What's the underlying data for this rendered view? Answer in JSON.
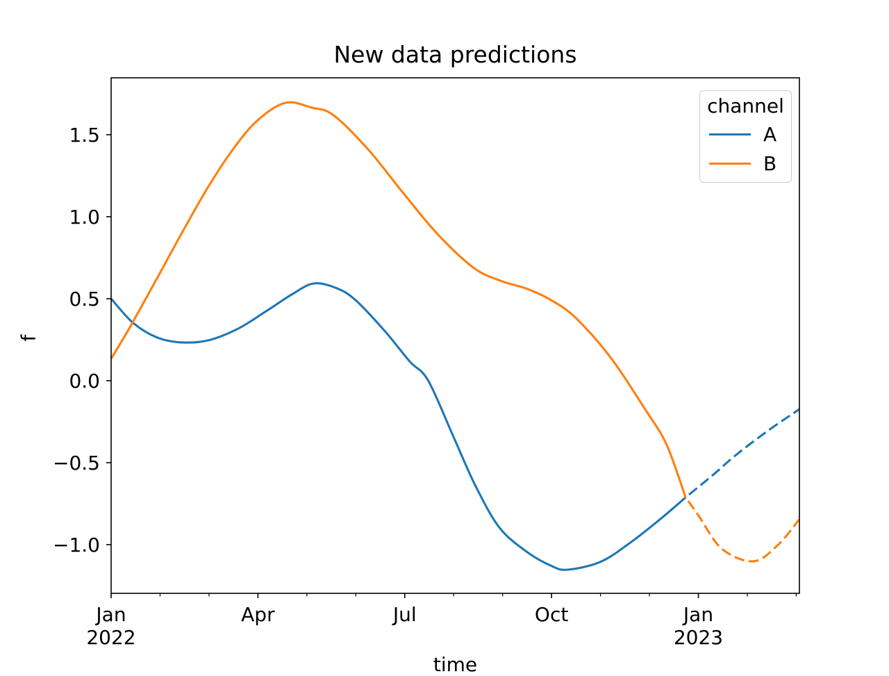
{
  "figure": {
    "title": "New data predictions"
  },
  "axes": {
    "xlabel": "time",
    "ylabel": "f"
  },
  "legend": {
    "title": "channel",
    "position": "upper right",
    "entries": [
      {
        "label": "A",
        "color": "#1f77b4"
      },
      {
        "label": "B",
        "color": "#ff7f0e"
      }
    ]
  },
  "chart_data": {
    "type": "line",
    "title": "New data predictions",
    "xlabel": "time",
    "ylabel": "f",
    "x_unit": "months since 2022-01-01",
    "x_range_months": [
      0,
      14.065
    ],
    "ylim": [
      -1.297,
      1.847
    ],
    "grid": false,
    "legend_position": "upper right",
    "y_ticks": [
      {
        "value": 1.5,
        "label": "1.5"
      },
      {
        "value": 1.0,
        "label": "1.0"
      },
      {
        "value": 0.5,
        "label": "0.5"
      },
      {
        "value": 0.0,
        "label": "0.0"
      },
      {
        "value": -0.5,
        "label": "−0.5"
      },
      {
        "value": -1.0,
        "label": "−1.0"
      }
    ],
    "x_major_ticks": [
      {
        "months": 0,
        "lines": [
          "Jan",
          "2022"
        ]
      },
      {
        "months": 3,
        "lines": [
          "Apr"
        ]
      },
      {
        "months": 6,
        "lines": [
          "Jul"
        ]
      },
      {
        "months": 9,
        "lines": [
          "Oct"
        ]
      },
      {
        "months": 12,
        "lines": [
          "Jan",
          "2023"
        ]
      }
    ],
    "x_minor_ticks_months": [
      1,
      2,
      4,
      5,
      7,
      8,
      10,
      11,
      13,
      14
    ],
    "forecast_start_months": 11.74,
    "line_style": {
      "observed": "solid",
      "forecast": "dashed",
      "width": 3
    },
    "series": [
      {
        "name": "A",
        "color": "#1f77b4",
        "observed": [
          [
            0.0,
            0.5
          ],
          [
            0.45,
            0.352
          ],
          [
            0.95,
            0.262
          ],
          [
            1.45,
            0.233
          ],
          [
            2.0,
            0.247
          ],
          [
            2.6,
            0.318
          ],
          [
            3.2,
            0.43
          ],
          [
            3.7,
            0.527
          ],
          [
            4.14,
            0.593
          ],
          [
            4.6,
            0.565
          ],
          [
            5.0,
            0.49
          ],
          [
            5.6,
            0.3
          ],
          [
            6.1,
            0.118
          ],
          [
            6.48,
            0.0
          ],
          [
            7.0,
            -0.345
          ],
          [
            7.45,
            -0.644
          ],
          [
            7.94,
            -0.898
          ],
          [
            8.51,
            -1.047
          ],
          [
            9.0,
            -1.13
          ],
          [
            9.33,
            -1.153
          ],
          [
            10.0,
            -1.105
          ],
          [
            10.6,
            -0.99
          ],
          [
            11.2,
            -0.85
          ],
          [
            11.74,
            -0.712
          ]
        ],
        "forecast": [
          [
            11.74,
            -0.712
          ],
          [
            12.3,
            -0.575
          ],
          [
            12.77,
            -0.453
          ],
          [
            13.4,
            -0.31
          ],
          [
            14.06,
            -0.175
          ]
        ]
      },
      {
        "name": "B",
        "color": "#ff7f0e",
        "observed": [
          [
            0.0,
            0.133
          ],
          [
            0.43,
            0.35
          ],
          [
            1.0,
            0.658
          ],
          [
            1.5,
            0.93
          ],
          [
            2.0,
            1.19
          ],
          [
            2.5,
            1.415
          ],
          [
            3.0,
            1.59
          ],
          [
            3.57,
            1.695
          ],
          [
            4.1,
            1.665
          ],
          [
            4.54,
            1.62
          ],
          [
            5.25,
            1.411
          ],
          [
            5.96,
            1.148
          ],
          [
            6.67,
            0.894
          ],
          [
            7.4,
            0.69
          ],
          [
            7.95,
            0.61
          ],
          [
            8.5,
            0.56
          ],
          [
            9.0,
            0.49
          ],
          [
            9.5,
            0.381
          ],
          [
            10.21,
            0.14
          ],
          [
            10.92,
            -0.178
          ],
          [
            11.35,
            -0.39
          ],
          [
            11.74,
            -0.712
          ]
        ],
        "forecast": [
          [
            11.74,
            -0.712
          ],
          [
            12.01,
            -0.826
          ],
          [
            12.48,
            -1.025
          ],
          [
            13.12,
            -1.102
          ],
          [
            13.62,
            -1.004
          ],
          [
            14.06,
            -0.847
          ]
        ]
      }
    ]
  }
}
